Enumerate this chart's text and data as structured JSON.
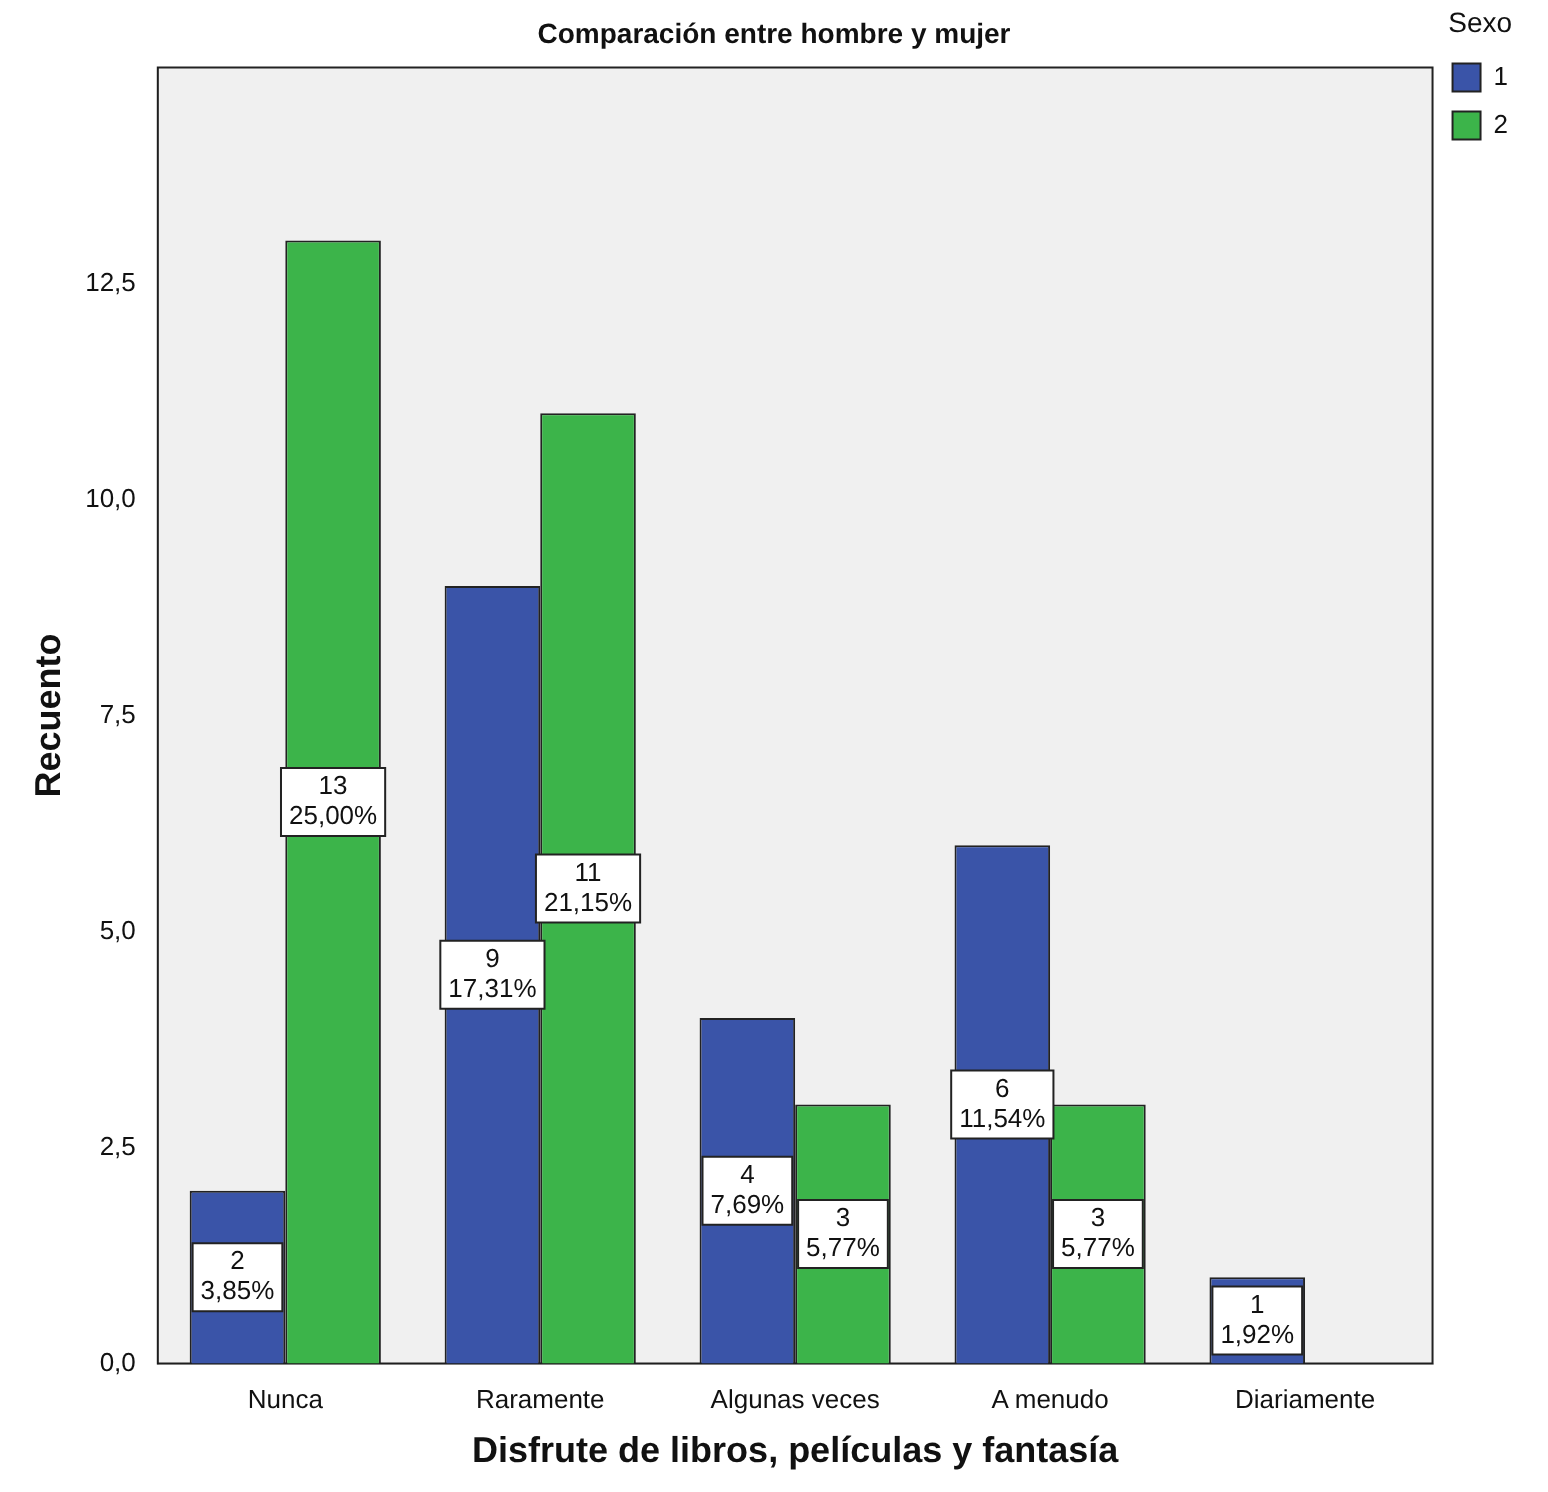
{
  "chart_data": {
    "type": "bar",
    "title": "Comparación entre hombre y mujer",
    "xlabel": "Disfrute de libros, películas y fantasía",
    "ylabel": "Recuento",
    "legend_title": "Sexo",
    "legend": "top right",
    "categories": [
      "Nunca",
      "Raramente",
      "Algunas veces",
      "A menudo",
      "Diariamente"
    ],
    "series": [
      {
        "name": "1",
        "color": "#3a54a8",
        "values": [
          2,
          9,
          4,
          6,
          1
        ],
        "value_labels": [
          "2\n3,85%",
          "9\n17,31%",
          "4\n7,69%",
          "6\n11,54%",
          "1\n1,92%"
        ]
      },
      {
        "name": "2",
        "color": "#3cb44a",
        "values": [
          13,
          11,
          3,
          3,
          null
        ],
        "value_labels": [
          "13\n25,00%",
          "11\n21,15%",
          "3\n5,77%",
          "3\n5,77%",
          null
        ]
      }
    ],
    "ylim": [
      0,
      15
    ],
    "yticks": [
      {
        "value": 0,
        "label": "0,0"
      },
      {
        "value": 2.5,
        "label": "2,5"
      },
      {
        "value": 5,
        "label": "5,0"
      },
      {
        "value": 7.5,
        "label": "7,5"
      },
      {
        "value": 10,
        "label": "10,0"
      },
      {
        "value": 12.5,
        "label": "12,5"
      }
    ],
    "grid": false
  }
}
